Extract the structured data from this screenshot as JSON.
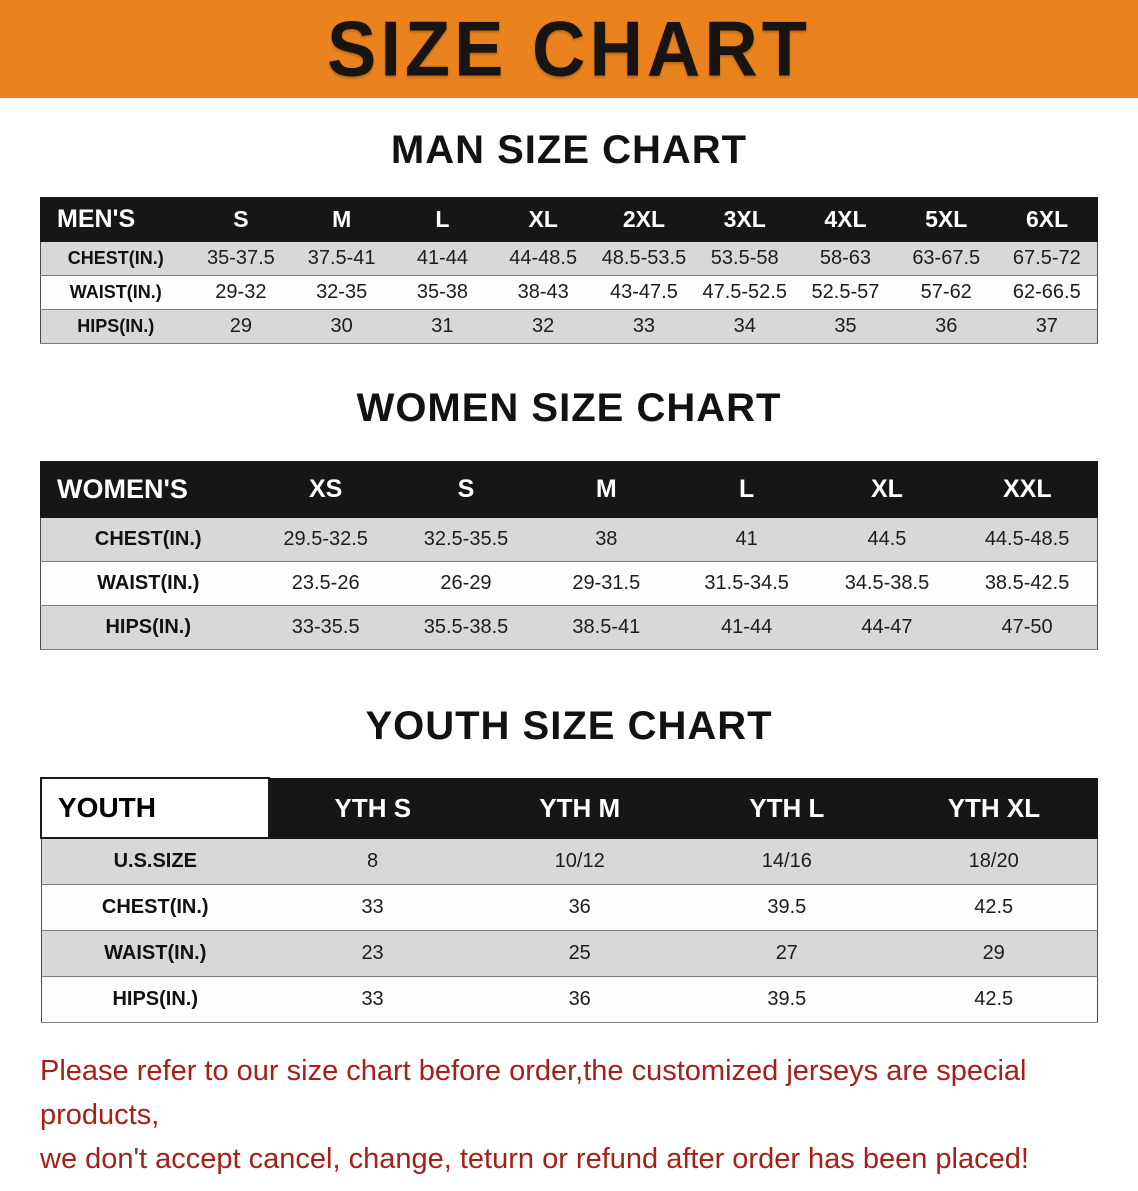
{
  "colors": {
    "banner_bg": "#ea831d",
    "header_bg": "#161616",
    "row_gray": "#d8d8d8",
    "footer_red": "#a62019",
    "text_dark": "#111111"
  },
  "banner": {
    "title": "SIZE CHART"
  },
  "sections": [
    {
      "heading": "MAN SIZE CHART",
      "table": {
        "header": [
          "MEN'S",
          "S",
          "M",
          "L",
          "XL",
          "2XL",
          "3XL",
          "4XL",
          "5XL",
          "6XL"
        ],
        "rows": [
          {
            "label": "CHEST(IN.)",
            "values": [
              "35-37.5",
              "37.5-41",
              "41-44",
              "44-48.5",
              "48.5-53.5",
              "53.5-58",
              "58-63",
              "63-67.5",
              "67.5-72"
            ]
          },
          {
            "label": "WAIST(IN.)",
            "values": [
              "29-32",
              "32-35",
              "35-38",
              "38-43",
              "43-47.5",
              "47.5-52.5",
              "52.5-57",
              "57-62",
              "62-66.5"
            ]
          },
          {
            "label": "HIPS(IN.)",
            "values": [
              "29",
              "30",
              "31",
              "32",
              "33",
              "34",
              "35",
              "36",
              "37"
            ]
          }
        ]
      }
    },
    {
      "heading": "WOMEN SIZE CHART",
      "table": {
        "header": [
          "WOMEN'S",
          "XS",
          "S",
          "M",
          "L",
          "XL",
          "XXL"
        ],
        "rows": [
          {
            "label": "CHEST(IN.)",
            "values": [
              "29.5-32.5",
              "32.5-35.5",
              "38",
              "41",
              "44.5",
              "44.5-48.5"
            ]
          },
          {
            "label": "WAIST(IN.)",
            "values": [
              "23.5-26",
              "26-29",
              "29-31.5",
              "31.5-34.5",
              "34.5-38.5",
              "38.5-42.5"
            ]
          },
          {
            "label": "HIPS(IN.)",
            "values": [
              "33-35.5",
              "35.5-38.5",
              "38.5-41",
              "41-44",
              "44-47",
              "47-50"
            ]
          }
        ]
      }
    },
    {
      "heading": "YOUTH SIZE CHART",
      "table": {
        "header": [
          "YOUTH",
          "YTH S",
          "YTH M",
          "YTH L",
          "YTH XL"
        ],
        "rows": [
          {
            "label": "U.S.SIZE",
            "values": [
              "8",
              "10/12",
              "14/16",
              "18/20"
            ]
          },
          {
            "label": "CHEST(IN.)",
            "values": [
              "33",
              "36",
              "39.5",
              "42.5"
            ]
          },
          {
            "label": "WAIST(IN.)",
            "values": [
              "23",
              "25",
              "27",
              "29"
            ]
          },
          {
            "label": "HIPS(IN.)",
            "values": [
              "33",
              "36",
              "39.5",
              "42.5"
            ]
          }
        ]
      }
    }
  ],
  "footer": {
    "line1": "Please refer to our size chart before order,the customized jerseys are special products,",
    "line2": "we don't accept cancel, change, teturn or refund after order has been placed!"
  }
}
